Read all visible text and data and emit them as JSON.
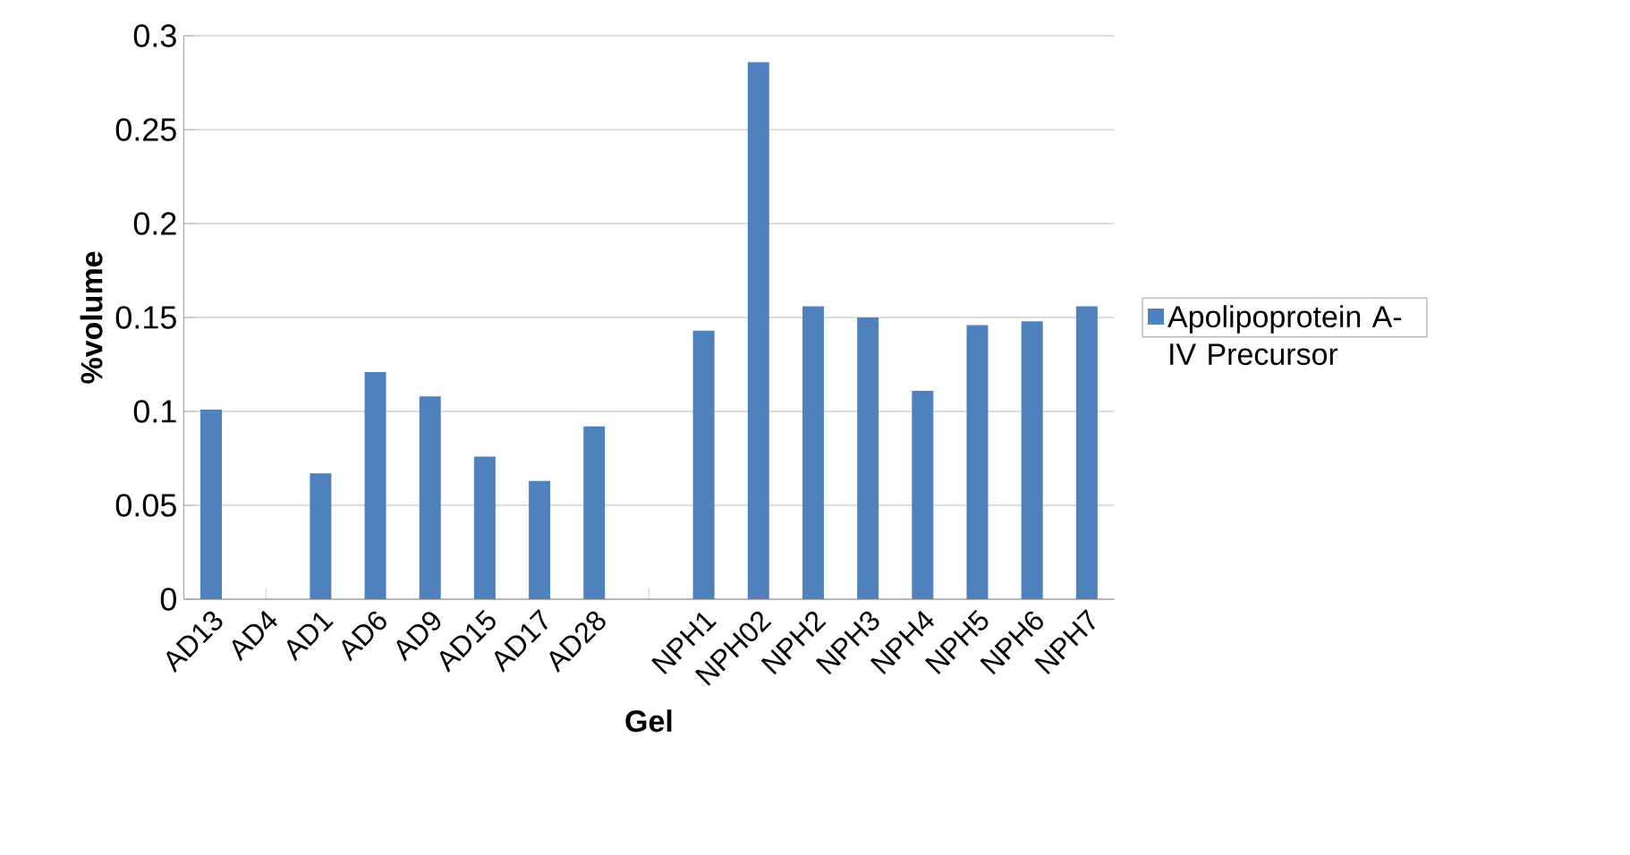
{
  "chart_data": {
    "type": "bar",
    "xlabel": "Gel",
    "ylabel": "%volume",
    "categories": [
      "AD13",
      "AD4",
      "AD1",
      "AD6",
      "AD9",
      "AD15",
      "AD17",
      "AD28",
      null,
      "NPH1",
      "NPH02",
      "NPH2",
      "NPH3",
      "NPH4",
      "NPH5",
      "NPH6",
      "NPH7"
    ],
    "series": [
      {
        "name": "Apolipoprotein A-IV Precursor",
        "color": "#4f81bd",
        "values": [
          0.101,
          null,
          0.067,
          0.121,
          0.108,
          0.076,
          0.063,
          0.092,
          null,
          0.143,
          0.286,
          0.156,
          0.15,
          0.111,
          0.146,
          0.148,
          0.156
        ]
      }
    ],
    "ylim": [
      0,
      0.3
    ],
    "yticks": [
      0,
      0.05,
      0.1,
      0.15,
      0.2,
      0.25,
      0.3
    ],
    "grid": "y",
    "legend": "right"
  }
}
